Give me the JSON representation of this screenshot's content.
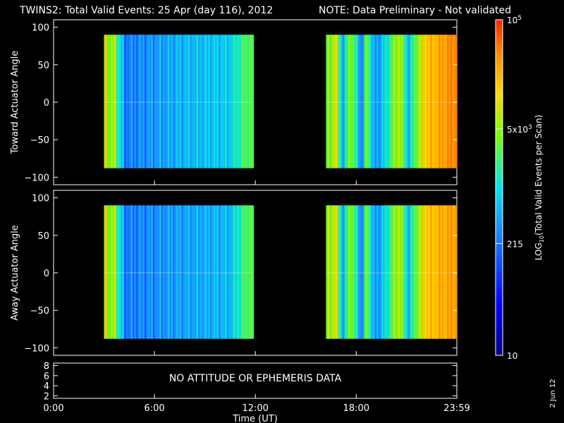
{
  "title": {
    "main": "TWINS2: Total Valid Events: 25 Apr (day 116), 2012",
    "note": "NOTE: Data Preliminary - Not validated",
    "note_color": "#ff0000"
  },
  "date_stamp": "2 Jun 12",
  "chart_data": [
    {
      "type": "heatmap",
      "panel": "top",
      "ylabel": "Toward Actuator Angle",
      "ylim": [
        -110,
        110
      ],
      "yticks": [
        "100",
        "50",
        "0",
        "−50",
        "−100"
      ],
      "ytick_values": [
        100,
        50,
        0,
        -50,
        -100
      ],
      "xlim": [
        0,
        23.983
      ],
      "data_y_range": [
        -88,
        90
      ],
      "coverage_hours": [
        [
          3.0,
          11.83
        ],
        [
          16.2,
          24.0
        ]
      ],
      "colors": [
        "#1e90ff",
        "#00bfff",
        "#00e5ee",
        "#ffa500",
        "#ff8c00",
        "#ffd700"
      ],
      "column_hours": [
        3.1,
        3.3,
        3.6,
        3.8,
        4.2,
        8.0,
        10.4,
        11.5,
        16.4,
        16.7,
        17.2,
        17.6,
        18.3,
        18.6,
        19.0,
        19.5,
        20.5,
        21.1,
        21.5,
        22.1,
        23.9
      ],
      "column_levels": [
        3.6,
        3.2,
        3.4,
        2.9,
        2.2,
        2.5,
        2.6,
        3.1,
        3.2,
        3.6,
        2.4,
        3.4,
        2.2,
        3.3,
        2.3,
        2.5,
        3.5,
        2.5,
        3.2,
        3.7,
        4.2
      ]
    },
    {
      "type": "heatmap",
      "panel": "middle",
      "ylabel": "Away Actuator Angle",
      "ylim": [
        -110,
        110
      ],
      "yticks": [
        "100",
        "50",
        "0",
        "−50",
        "−100"
      ],
      "ytick_values": [
        100,
        50,
        0,
        -50,
        -100
      ],
      "xlim": [
        0,
        23.983
      ],
      "data_y_range": [
        -88,
        90
      ],
      "coverage_hours": [
        [
          3.0,
          11.83
        ],
        [
          16.2,
          24.0
        ]
      ],
      "column_hours": [
        3.1,
        3.3,
        3.6,
        3.8,
        4.2,
        8.0,
        10.4,
        11.5,
        16.4,
        16.7,
        17.2,
        17.6,
        18.3,
        18.6,
        19.0,
        19.5,
        20.5,
        21.1,
        21.5,
        22.1,
        23.9
      ],
      "column_levels": [
        3.6,
        3.2,
        3.4,
        2.9,
        2.2,
        2.4,
        2.5,
        3.1,
        3.3,
        3.6,
        2.4,
        3.4,
        2.2,
        3.3,
        2.3,
        2.5,
        3.5,
        2.5,
        3.2,
        3.7,
        4.0
      ]
    },
    {
      "type": "line",
      "panel": "bottom",
      "ylim": [
        1.5,
        8.5
      ],
      "yticks": [
        "8",
        "6",
        "4",
        "2"
      ],
      "ytick_values": [
        8,
        6,
        4,
        2
      ],
      "message": "NO ATTITUDE OR EPHEMERIS DATA",
      "xlabel": "Time (UT)",
      "xlim": [
        0,
        23.983
      ],
      "xticks": [
        "0:00",
        "6:00",
        "12:00",
        "18:00",
        "23:59"
      ],
      "xtick_values": [
        0,
        6,
        12,
        18,
        23.983
      ]
    }
  ],
  "colorbar": {
    "label": "LOG10(Total Valid Events per Scan)",
    "range": [
      10,
      100000
    ],
    "ticks": [
      {
        "value": 100000,
        "label": "10",
        "sup": "5"
      },
      {
        "value": 5000,
        "label": "5x10",
        "sup": "3"
      },
      {
        "value": 215,
        "label": "215",
        "sup": ""
      },
      {
        "value": 10,
        "label": "10",
        "sup": ""
      }
    ]
  }
}
